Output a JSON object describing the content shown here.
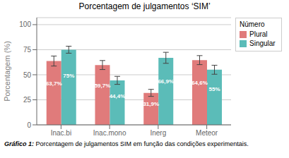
{
  "chart_data": {
    "type": "bar",
    "title": "Porcentagem de julgamentos ‘SIM’",
    "y_label": "Porcentagem (%)",
    "caption": [
      "Gráfico 1:",
      "Porcentagem de julgamentos SIM em função das condições experimentais."
    ],
    "categories": [
      "Inac.bi",
      "Inac.mono",
      "Inerg",
      "Meteor"
    ],
    "series": [
      {
        "name": "Plural",
        "color": "#E07B7B",
        "values": [
          63.7,
          59.7,
          31.9,
          64.6
        ],
        "errors": [
          5.0,
          4.5,
          3.5,
          4.5
        ],
        "value_labels": [
          "63,7%",
          "59,7%",
          "31,9%",
          "64,6%"
        ]
      },
      {
        "name": "Singular",
        "color": "#5BBCB8",
        "values": [
          75.0,
          44.4,
          66.9,
          55.0
        ],
        "errors": [
          3.5,
          4.0,
          5.5,
          4.5
        ],
        "value_labels": [
          "75%",
          "44,4%",
          "66,9%",
          "55%"
        ]
      }
    ],
    "legend_title": "Número",
    "legend": "upper right",
    "ylim": [
      0,
      107
    ],
    "yticks": [
      0,
      25,
      50,
      75,
      100
    ],
    "grid": true,
    "data_labels": true
  }
}
